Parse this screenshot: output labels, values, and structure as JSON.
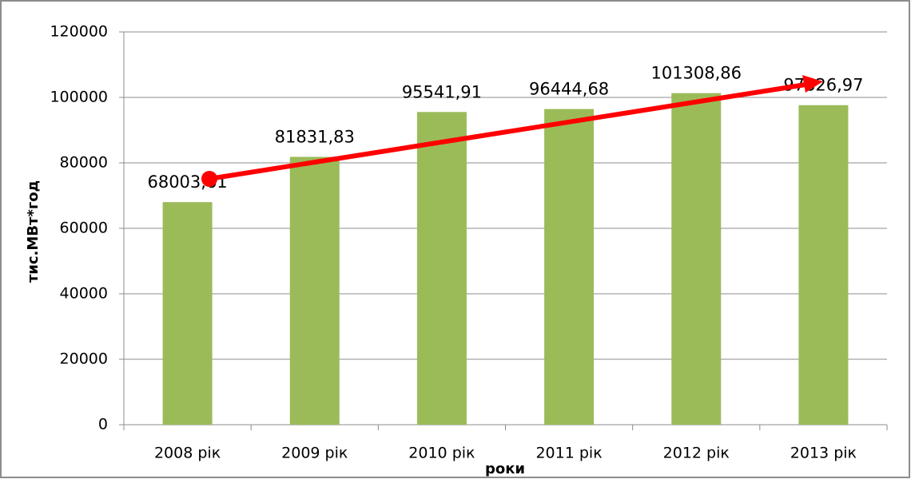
{
  "chart_data": {
    "type": "bar",
    "categories": [
      "2008 рік",
      "2009 рік",
      "2010 рік",
      "2011 рік",
      "2012 рік",
      "2013 рік"
    ],
    "values": [
      68003.61,
      81831.83,
      95541.91,
      96444.68,
      101308.86,
      97626.97
    ],
    "value_labels": [
      "68003,61",
      "81831,83",
      "95541,91",
      "96444,68",
      "101308,86",
      "97626,97"
    ],
    "color": "#9bbb59",
    "ylim": [
      0,
      120000
    ],
    "yticks": [
      0,
      20000,
      40000,
      60000,
      80000,
      100000,
      120000
    ],
    "grid": true,
    "y_label": "тис.МВт*год",
    "x_label": "роки"
  }
}
